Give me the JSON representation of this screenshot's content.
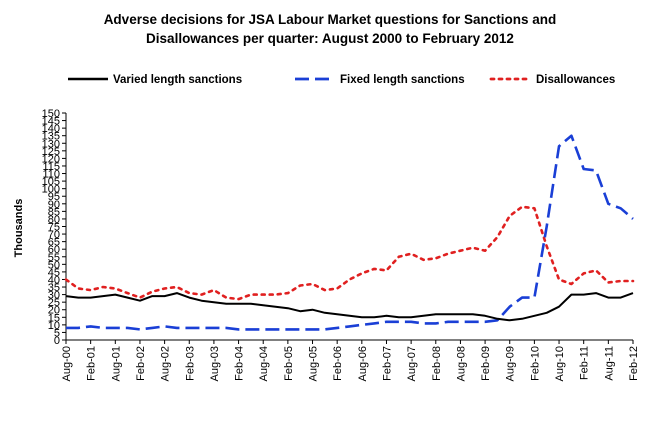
{
  "chart_data": {
    "type": "line",
    "title_lines": [
      "Adverse decisions for JSA Labour Market questions for Sanctions and",
      "Disallowances per quarter: August 2000 to February 2012"
    ],
    "xlabel": "",
    "ylabel": "Thousands",
    "ylim": [
      0,
      150
    ],
    "yticks": [
      0,
      5,
      10,
      15,
      20,
      25,
      30,
      35,
      40,
      45,
      50,
      55,
      60,
      65,
      70,
      75,
      80,
      85,
      90,
      95,
      100,
      105,
      110,
      115,
      120,
      125,
      130,
      135,
      140,
      145,
      150
    ],
    "grid": false,
    "legend": "top",
    "x": [
      "Aug-00",
      "Nov-00",
      "Feb-01",
      "May-01",
      "Aug-01",
      "Nov-01",
      "Feb-02",
      "May-02",
      "Aug-02",
      "Nov-02",
      "Feb-03",
      "May-03",
      "Aug-03",
      "Nov-03",
      "Feb-04",
      "May-04",
      "Aug-04",
      "Nov-04",
      "Feb-05",
      "May-05",
      "Aug-05",
      "Nov-05",
      "Feb-06",
      "May-06",
      "Aug-06",
      "Nov-06",
      "Feb-07",
      "May-07",
      "Aug-07",
      "Nov-07",
      "Feb-08",
      "May-08",
      "Aug-08",
      "Nov-08",
      "Feb-09",
      "May-09",
      "Aug-09",
      "Nov-09",
      "Feb-10",
      "May-10",
      "Aug-10",
      "Nov-10",
      "Feb-11",
      "May-11",
      "Aug-11",
      "Nov-11",
      "Feb-12"
    ],
    "xtick_labels": [
      "Aug-00",
      "Feb-01",
      "Aug-01",
      "Feb-02",
      "Aug-02",
      "Feb-03",
      "Aug-03",
      "Feb-04",
      "Aug-04",
      "Feb-05",
      "Aug-05",
      "Feb-06",
      "Aug-06",
      "Feb-07",
      "Aug-07",
      "Feb-08",
      "Aug-08",
      "Feb-09",
      "Aug-09",
      "Feb-10",
      "Aug-10",
      "Feb-11",
      "Aug-11",
      "Feb-12"
    ],
    "series": [
      {
        "name": "Varied length sanctions",
        "color": "#000000",
        "dash": "solid",
        "values": [
          29,
          28,
          28,
          29,
          30,
          28,
          26,
          29,
          29,
          31,
          28,
          26,
          25,
          24,
          24,
          24,
          23,
          22,
          21,
          19,
          20,
          18,
          17,
          16,
          15,
          15,
          16,
          15,
          15,
          16,
          17,
          17,
          17,
          17,
          16,
          14,
          13,
          14,
          16,
          18,
          22,
          30,
          30,
          31,
          28,
          28,
          31
        ]
      },
      {
        "name": "Fixed length sanctions",
        "color": "#1a3fd6",
        "dash": "dash",
        "values": [
          8,
          8,
          9,
          8,
          8,
          8,
          7,
          8,
          9,
          8,
          8,
          8,
          8,
          8,
          7,
          7,
          7,
          7,
          7,
          7,
          7,
          7,
          8,
          9,
          10,
          11,
          12,
          12,
          12,
          11,
          11,
          12,
          12,
          12,
          12,
          13,
          22,
          28,
          28,
          75,
          128,
          135,
          113,
          112,
          90,
          87,
          80
        ]
      },
      {
        "name": "Disallowances",
        "color": "#e02020",
        "dash": "dot",
        "values": [
          40,
          34,
          33,
          35,
          34,
          31,
          28,
          32,
          34,
          35,
          31,
          30,
          33,
          28,
          27,
          30,
          30,
          30,
          31,
          36,
          37,
          33,
          34,
          40,
          44,
          47,
          46,
          55,
          57,
          53,
          54,
          57,
          59,
          61,
          59,
          68,
          82,
          88,
          87,
          62,
          40,
          37,
          44,
          46,
          38,
          39,
          39
        ]
      }
    ]
  }
}
